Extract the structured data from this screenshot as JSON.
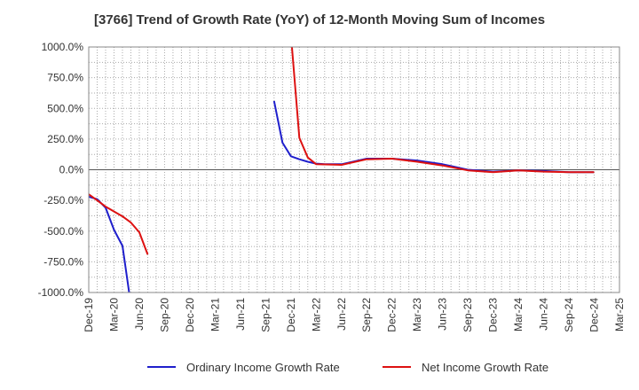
{
  "chart_data": {
    "type": "line",
    "title": "[3766]  Trend of Growth Rate (YoY) of 12-Month Moving Sum of Incomes",
    "xlabel": "",
    "ylabel": "",
    "ylim": [
      -1000,
      1000
    ],
    "y_ticks": [
      "1000.0%",
      "750.0%",
      "500.0%",
      "250.0%",
      "0.0%",
      "-250.0%",
      "-500.0%",
      "-750.0%",
      "-1000.0%"
    ],
    "y_tick_values": [
      1000,
      750,
      500,
      250,
      0,
      -250,
      -500,
      -750,
      -1000
    ],
    "x_tick_labels": [
      "Dec-19",
      "Mar-20",
      "Jun-20",
      "Sep-20",
      "Dec-20",
      "Mar-21",
      "Jun-21",
      "Sep-21",
      "Dec-21",
      "Mar-22",
      "Jun-22",
      "Sep-22",
      "Dec-22",
      "Mar-23",
      "Jun-23",
      "Sep-23",
      "Dec-23",
      "Mar-24",
      "Jun-24",
      "Sep-24",
      "Dec-24",
      "Mar-25"
    ],
    "x_range": [
      "2019-12",
      "2025-03"
    ],
    "grid": true,
    "legend_position": "bottom",
    "series": [
      {
        "name": "Ordinary Income Growth Rate",
        "color": "#1f1fcc",
        "points": [
          {
            "x": "2019-12",
            "y": -220
          },
          {
            "x": "2020-01",
            "y": -240
          },
          {
            "x": "2020-02",
            "y": -310
          },
          {
            "x": "2020-03",
            "y": -490
          },
          {
            "x": "2020-04",
            "y": -620
          },
          {
            "x": "2020-05",
            "y": -1100
          },
          {
            "x": "2021-10",
            "y": 560
          },
          {
            "x": "2021-11",
            "y": 220
          },
          {
            "x": "2021-12",
            "y": 110
          },
          {
            "x": "2022-01",
            "y": 85
          },
          {
            "x": "2022-02",
            "y": 65
          },
          {
            "x": "2022-03",
            "y": 50
          },
          {
            "x": "2022-04",
            "y": 45
          },
          {
            "x": "2022-05",
            "y": 45
          },
          {
            "x": "2022-06",
            "y": 45
          },
          {
            "x": "2022-09",
            "y": 90
          },
          {
            "x": "2022-12",
            "y": 90
          },
          {
            "x": "2023-03",
            "y": 75
          },
          {
            "x": "2023-06",
            "y": 45
          },
          {
            "x": "2023-09",
            "y": 0
          },
          {
            "x": "2023-12",
            "y": -15
          },
          {
            "x": "2024-03",
            "y": -5
          },
          {
            "x": "2024-06",
            "y": -10
          },
          {
            "x": "2024-09",
            "y": -20
          },
          {
            "x": "2024-12",
            "y": -20
          }
        ]
      },
      {
        "name": "Net Income Growth Rate",
        "color": "#dd1111",
        "points": [
          {
            "x": "2019-12",
            "y": -200
          },
          {
            "x": "2020-01",
            "y": -250
          },
          {
            "x": "2020-02",
            "y": -300
          },
          {
            "x": "2020-03",
            "y": -340
          },
          {
            "x": "2020-04",
            "y": -380
          },
          {
            "x": "2020-05",
            "y": -430
          },
          {
            "x": "2020-06",
            "y": -510
          },
          {
            "x": "2020-07",
            "y": -690
          },
          {
            "x": "2021-12",
            "y": 1100
          },
          {
            "x": "2022-01",
            "y": 260
          },
          {
            "x": "2022-02",
            "y": 100
          },
          {
            "x": "2022-03",
            "y": 45
          },
          {
            "x": "2022-06",
            "y": 40
          },
          {
            "x": "2022-09",
            "y": 85
          },
          {
            "x": "2022-12",
            "y": 90
          },
          {
            "x": "2023-03",
            "y": 65
          },
          {
            "x": "2023-06",
            "y": 35
          },
          {
            "x": "2023-09",
            "y": -5
          },
          {
            "x": "2023-12",
            "y": -20
          },
          {
            "x": "2024-03",
            "y": -5
          },
          {
            "x": "2024-06",
            "y": -15
          },
          {
            "x": "2024-09",
            "y": -20
          },
          {
            "x": "2024-12",
            "y": -20
          }
        ]
      }
    ]
  }
}
